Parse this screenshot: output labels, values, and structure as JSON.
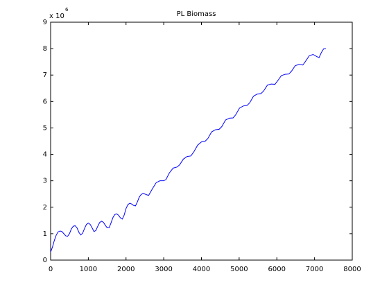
{
  "chart_data": {
    "type": "line",
    "title": "PL  Biomass",
    "y_multiplier": "x 10",
    "y_multiplier_exponent": "6",
    "x": [
      0,
      50,
      100,
      150,
      200,
      250,
      300,
      350,
      400,
      450,
      500,
      550,
      600,
      650,
      700,
      750,
      800,
      850,
      900,
      950,
      1000,
      1050,
      1100,
      1150,
      1200,
      1250,
      1300,
      1350,
      1400,
      1450,
      1500,
      1550,
      1600,
      1650,
      1700,
      1750,
      1800,
      1850,
      1900,
      1950,
      2000,
      2050,
      2100,
      2150,
      2200,
      2250,
      2300,
      2350,
      2400,
      2450,
      2500,
      2550,
      2600,
      2700,
      2800,
      2900,
      3000,
      3060,
      3150,
      3250,
      3350,
      3420,
      3520,
      3620,
      3720,
      3800,
      3900,
      4000,
      4100,
      4170,
      4270,
      4370,
      4470,
      4540,
      4640,
      4740,
      4840,
      4910,
      5010,
      5110,
      5210,
      5280,
      5380,
      5480,
      5580,
      5650,
      5750,
      5850,
      5950,
      6020,
      6120,
      6220,
      6320,
      6390,
      6490,
      6590,
      6690,
      6760,
      6860,
      6960,
      7060,
      7120,
      7180,
      7240,
      7300
    ],
    "series": [
      {
        "name": "PL Biomass",
        "color": "#0000ff",
        "values": [
          0.3,
          0.5,
          0.75,
          0.95,
          1.07,
          1.1,
          1.08,
          1.0,
          0.92,
          0.9,
          1.0,
          1.18,
          1.28,
          1.3,
          1.22,
          1.05,
          0.95,
          1.02,
          1.2,
          1.35,
          1.4,
          1.35,
          1.22,
          1.08,
          1.12,
          1.28,
          1.42,
          1.47,
          1.43,
          1.32,
          1.22,
          1.22,
          1.4,
          1.6,
          1.72,
          1.75,
          1.7,
          1.6,
          1.55,
          1.7,
          1.95,
          2.1,
          2.15,
          2.12,
          2.07,
          2.05,
          2.2,
          2.38,
          2.48,
          2.52,
          2.5,
          2.47,
          2.45,
          2.7,
          2.93,
          3.0,
          3.0,
          3.05,
          3.3,
          3.48,
          3.52,
          3.6,
          3.82,
          3.92,
          3.94,
          4.1,
          4.35,
          4.47,
          4.5,
          4.6,
          4.85,
          4.93,
          4.95,
          5.05,
          5.3,
          5.37,
          5.38,
          5.5,
          5.75,
          5.83,
          5.85,
          5.95,
          6.2,
          6.28,
          6.3,
          6.4,
          6.62,
          6.66,
          6.65,
          6.78,
          6.98,
          7.03,
          7.04,
          7.15,
          7.36,
          7.4,
          7.38,
          7.52,
          7.73,
          7.78,
          7.7,
          7.66,
          7.85,
          7.99,
          8.0
        ]
      }
    ],
    "xlim": [
      0,
      8000
    ],
    "xticks": [
      0,
      1000,
      2000,
      3000,
      4000,
      5000,
      6000,
      7000,
      8000
    ],
    "ylim": [
      0,
      9
    ],
    "yticks": [
      0,
      1,
      2,
      3,
      4,
      5,
      6,
      7,
      8,
      9
    ],
    "grid": false
  }
}
